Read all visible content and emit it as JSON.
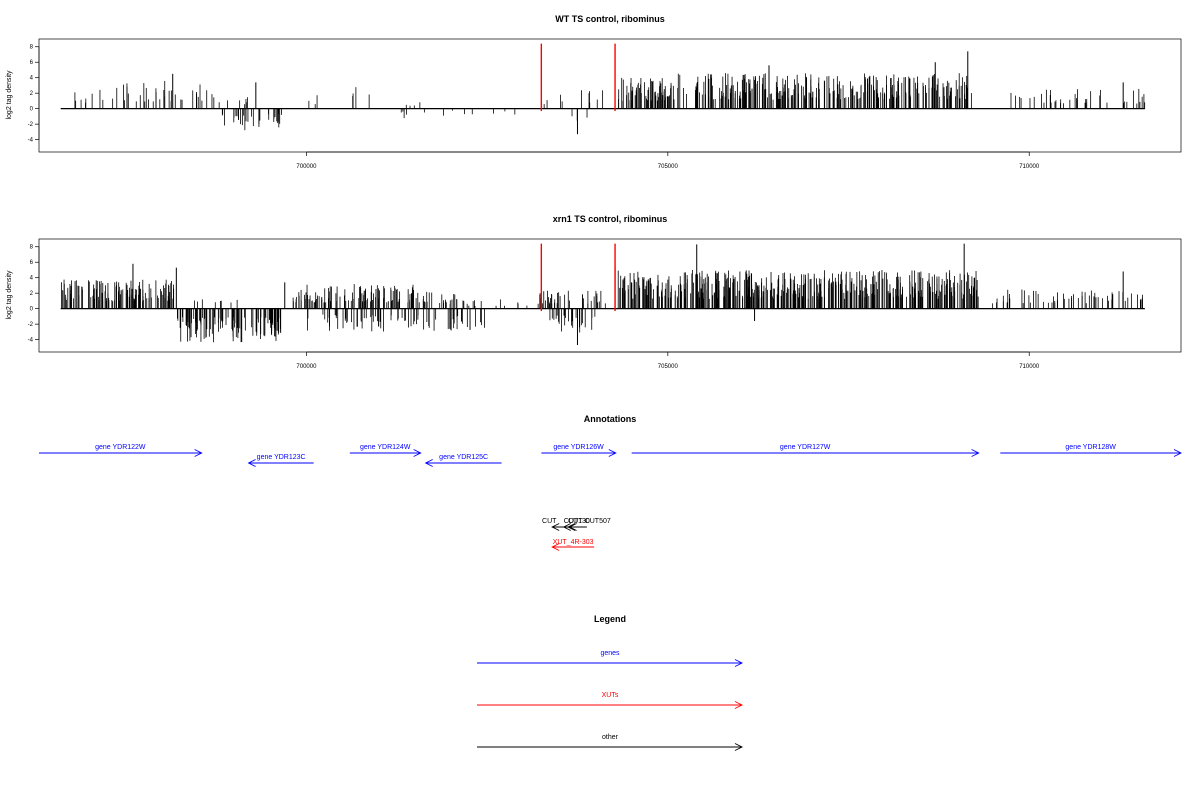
{
  "colors": {
    "genes": "#0000ff",
    "XUTs": "#ff0000",
    "other": "#000000",
    "highlight": "#ff0000",
    "density": "#000000"
  },
  "chart_data": [
    {
      "type": "bar",
      "title": "WT TS control, ribominus",
      "ylabel": "log2 tag density",
      "xlim": [
        696300,
        712100
      ],
      "ylim": [
        -5.6,
        9.0
      ],
      "xticks": [
        700000,
        705000,
        710000
      ],
      "xtick_labels": [
        "700000",
        "705000",
        "710000"
      ],
      "yticks": [
        -4,
        -2,
        0,
        2,
        4,
        6,
        8
      ],
      "ytick_labels": [
        "-4",
        "-2",
        "0",
        "2",
        "4",
        "6",
        "8"
      ],
      "baseline_range": [
        696600,
        711600
      ],
      "highlight_lines_x": [
        703250,
        704270
      ],
      "regions": [
        {
          "x0": 696750,
          "x1": 697300,
          "n": 8,
          "max": 2.8,
          "sign": 1
        },
        {
          "x0": 697300,
          "x1": 697900,
          "n": 14,
          "max": 3.5,
          "sign": 1
        },
        {
          "x0": 697900,
          "x1": 698400,
          "n": 12,
          "max": 3.6,
          "sign": 1
        },
        {
          "x0": 698400,
          "x1": 698800,
          "n": 10,
          "max": 3.2,
          "sign": 1
        },
        {
          "x0": 698850,
          "x1": 699200,
          "n": 6,
          "max": 2.2,
          "sign": 1
        },
        {
          "x0": 698800,
          "x1": 699400,
          "n": 20,
          "max": 3.0,
          "sign": -1
        },
        {
          "x0": 699400,
          "x1": 699700,
          "n": 12,
          "max": 2.5,
          "sign": -1
        },
        {
          "x0": 700000,
          "x1": 700150,
          "n": 3,
          "max": 2.0,
          "sign": 1
        },
        {
          "x0": 700600,
          "x1": 700900,
          "n": 4,
          "max": 2.8,
          "sign": 1
        },
        {
          "x0": 701300,
          "x1": 701900,
          "n": 6,
          "max": 1.5,
          "sign": -1
        },
        {
          "x0": 701300,
          "x1": 701700,
          "n": 4,
          "max": 1.2,
          "sign": 1
        },
        {
          "x0": 702000,
          "x1": 702900,
          "n": 6,
          "max": 1.0,
          "sign": -1
        },
        {
          "x0": 703100,
          "x1": 703400,
          "n": 3,
          "max": 1.2,
          "sign": 1
        },
        {
          "x0": 703500,
          "x1": 704100,
          "n": 8,
          "max": 2.5,
          "sign": 1
        },
        {
          "x0": 703600,
          "x1": 703900,
          "n": 3,
          "max": 2.2,
          "sign": -1
        },
        {
          "x0": 704300,
          "x1": 705000,
          "n": 60,
          "max": 4.0,
          "sign": 1
        },
        {
          "x0": 705000,
          "x1": 707000,
          "n": 140,
          "max": 4.6,
          "sign": 1
        },
        {
          "x0": 707000,
          "x1": 709200,
          "n": 150,
          "max": 4.6,
          "sign": 1
        },
        {
          "x0": 709700,
          "x1": 711600,
          "n": 40,
          "max": 2.6,
          "sign": 1
        }
      ],
      "spikes": [
        {
          "x": 698150,
          "y": 4.5
        },
        {
          "x": 699300,
          "y": 3.4
        },
        {
          "x": 703750,
          "y": -3.3
        },
        {
          "x": 706400,
          "y": 5.6
        },
        {
          "x": 708700,
          "y": 6.0
        },
        {
          "x": 709150,
          "y": 7.4
        },
        {
          "x": 711300,
          "y": 3.4
        }
      ],
      "seed": 11
    },
    {
      "type": "bar",
      "title": "xrn1 TS control, ribominus",
      "ylabel": "log2 tag density",
      "xlim": [
        696300,
        712100
      ],
      "ylim": [
        -5.6,
        9.0
      ],
      "xticks": [
        700000,
        705000,
        710000
      ],
      "xtick_labels": [
        "700000",
        "705000",
        "710000"
      ],
      "yticks": [
        -4,
        -2,
        0,
        2,
        4,
        6,
        8
      ],
      "ytick_labels": [
        "-4",
        "-2",
        "0",
        "2",
        "4",
        "6",
        "8"
      ],
      "baseline_range": [
        696600,
        711600
      ],
      "highlight_lines_x": [
        703250,
        704270
      ],
      "regions": [
        {
          "x0": 696600,
          "x1": 698200,
          "n": 130,
          "max": 3.8,
          "sign": 1
        },
        {
          "x0": 698200,
          "x1": 699700,
          "n": 120,
          "max": 4.4,
          "sign": -1
        },
        {
          "x0": 698400,
          "x1": 699100,
          "n": 8,
          "max": 1.2,
          "sign": 1
        },
        {
          "x0": 699800,
          "x1": 701600,
          "n": 110,
          "max": 3.2,
          "sign": 1
        },
        {
          "x0": 700000,
          "x1": 701800,
          "n": 60,
          "max": 3.0,
          "sign": -1
        },
        {
          "x0": 701600,
          "x1": 702200,
          "n": 25,
          "max": 2.2,
          "sign": 1
        },
        {
          "x0": 701900,
          "x1": 702500,
          "n": 20,
          "max": 3.0,
          "sign": -1
        },
        {
          "x0": 702200,
          "x1": 703200,
          "n": 12,
          "max": 1.2,
          "sign": 1
        },
        {
          "x0": 703200,
          "x1": 704200,
          "n": 40,
          "max": 2.5,
          "sign": 1
        },
        {
          "x0": 703300,
          "x1": 704000,
          "n": 25,
          "max": 3.5,
          "sign": -1
        },
        {
          "x0": 704300,
          "x1": 709300,
          "n": 480,
          "max": 5.0,
          "sign": 1
        },
        {
          "x0": 709400,
          "x1": 711600,
          "n": 60,
          "max": 2.6,
          "sign": 1
        }
      ],
      "spikes": [
        {
          "x": 697600,
          "y": 5.8
        },
        {
          "x": 698200,
          "y": 5.3
        },
        {
          "x": 699700,
          "y": 3.4
        },
        {
          "x": 703750,
          "y": -4.7
        },
        {
          "x": 704270,
          "y": 5.4
        },
        {
          "x": 705400,
          "y": 8.3
        },
        {
          "x": 706200,
          "y": -1.6
        },
        {
          "x": 709100,
          "y": 8.4
        },
        {
          "x": 711300,
          "y": 4.8
        }
      ],
      "seed": 29
    }
  ],
  "annotations": {
    "title": "Annotations",
    "genes": [
      {
        "label": "gene YDR122W",
        "x0": 696300,
        "x1": 698550,
        "dir": "right",
        "row": 0
      },
      {
        "label": "gene YDR123C",
        "x0": 699200,
        "x1": 700100,
        "dir": "left",
        "row": 1
      },
      {
        "label": "gene YDR124W",
        "x0": 700600,
        "x1": 701580,
        "dir": "right",
        "row": 0
      },
      {
        "label": "gene YDR125C",
        "x0": 701650,
        "x1": 702700,
        "dir": "left",
        "row": 1
      },
      {
        "label": "gene YDR126W",
        "x0": 703250,
        "x1": 704280,
        "dir": "right",
        "row": 0
      },
      {
        "label": "gene YDR127W",
        "x0": 704500,
        "x1": 709300,
        "dir": "right",
        "row": 0
      },
      {
        "label": "gene YDR128W",
        "x0": 709600,
        "x1": 712100,
        "dir": "right",
        "row": 0
      }
    ],
    "others": [
      {
        "label": "CUT",
        "x": 703260,
        "x0": 703400,
        "x1": 703620,
        "dir": "left"
      },
      {
        "label": "CUT130",
        "x": 703560,
        "x0": 703560,
        "x1": 703760,
        "dir": "left"
      },
      {
        "label": "CUT",
        "x": 703620,
        "x0": 703620,
        "x1": 703760,
        "dir": "left"
      },
      {
        "label": "CUT507",
        "x": 703850,
        "x0": 703640,
        "x1": 703880,
        "dir": "left"
      }
    ],
    "xuts": [
      {
        "label": "XUT_4R-303",
        "x0": 703400,
        "x1": 703980,
        "dir": "left"
      }
    ]
  },
  "legend": {
    "title": "Legend",
    "items": [
      {
        "label": "genes",
        "color_key": "genes"
      },
      {
        "label": "XUTs",
        "color_key": "XUTs"
      },
      {
        "label": "other",
        "color_key": "other"
      }
    ]
  }
}
